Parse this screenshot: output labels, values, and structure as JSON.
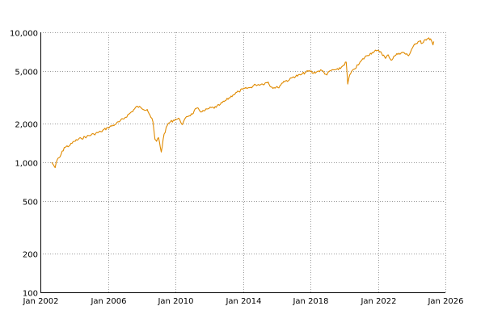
{
  "chart_data": {
    "type": "line",
    "title": "",
    "xlabel": "",
    "ylabel": "",
    "y_scale": "log",
    "ylim": [
      100,
      10000
    ],
    "xlim": [
      "2002-01-01",
      "2026-01-01"
    ],
    "grid": true,
    "y_ticks": [
      {
        "value": 100,
        "label": "100"
      },
      {
        "value": 200,
        "label": "200"
      },
      {
        "value": 500,
        "label": "500"
      },
      {
        "value": 1000,
        "label": "1,000"
      },
      {
        "value": 2000,
        "label": "2,000"
      },
      {
        "value": 5000,
        "label": "5,000"
      },
      {
        "value": 10000,
        "label": "10,000"
      }
    ],
    "x_ticks": [
      {
        "value": "2002-01-01",
        "label": "Jan 2002"
      },
      {
        "value": "2006-01-01",
        "label": "Jan 2006"
      },
      {
        "value": "2010-01-01",
        "label": "Jan 2010"
      },
      {
        "value": "2014-01-01",
        "label": "Jan 2014"
      },
      {
        "value": "2018-01-01",
        "label": "Jan 2018"
      },
      {
        "value": "2022-01-01",
        "label": "Jan 2022"
      },
      {
        "value": "2026-01-01",
        "label": "Jan 2026"
      }
    ],
    "series": [
      {
        "color": "#e08a00",
        "x": [
          "2002-09-01",
          "2002-10-15",
          "2002-11-15",
          "2003-01-01",
          "2003-03-01",
          "2003-06-01",
          "2003-10-01",
          "2004-01-01",
          "2004-06-01",
          "2004-10-01",
          "2005-03-01",
          "2005-08-01",
          "2006-01-01",
          "2006-06-01",
          "2006-09-01",
          "2007-01-01",
          "2007-06-01",
          "2007-10-01",
          "2008-01-01",
          "2008-05-01",
          "2008-07-01",
          "2008-09-01",
          "2008-10-15",
          "2008-11-20",
          "2009-01-01",
          "2009-03-01",
          "2009-05-01",
          "2009-08-01",
          "2010-01-01",
          "2010-04-01",
          "2010-06-01",
          "2010-09-01",
          "2011-01-01",
          "2011-04-01",
          "2011-08-01",
          "2011-10-01",
          "2012-01-01",
          "2012-06-01",
          "2012-09-01",
          "2013-01-01",
          "2013-06-01",
          "2013-10-01",
          "2014-01-01",
          "2014-06-01",
          "2014-10-01",
          "2015-03-01",
          "2015-07-01",
          "2015-09-01",
          "2016-02-01",
          "2016-06-01",
          "2016-10-01",
          "2017-01-01",
          "2017-06-01",
          "2017-10-01",
          "2018-01-15",
          "2018-02-10",
          "2018-06-01",
          "2018-09-01",
          "2018-12-24",
          "2019-03-01",
          "2019-06-01",
          "2019-09-01",
          "2019-12-01",
          "2020-02-15",
          "2020-03-20",
          "2020-05-01",
          "2020-08-01",
          "2020-11-01",
          "2021-01-01",
          "2021-05-01",
          "2021-09-01",
          "2021-12-01",
          "2022-03-01",
          "2022-06-15",
          "2022-08-15",
          "2022-10-15",
          "2023-01-01",
          "2023-04-01",
          "2023-07-01",
          "2023-10-25",
          "2024-01-01",
          "2024-03-01",
          "2024-05-01",
          "2024-07-15",
          "2024-08-05",
          "2024-10-01",
          "2024-12-01",
          "2025-02-15",
          "2025-04-08",
          "2025-04-25"
        ],
        "y": [
          1000,
          950,
          910,
          1050,
          1100,
          1300,
          1350,
          1450,
          1530,
          1580,
          1650,
          1720,
          1850,
          1950,
          2050,
          2200,
          2450,
          2700,
          2600,
          2550,
          2300,
          2050,
          1500,
          1450,
          1550,
          1200,
          1650,
          2000,
          2150,
          2150,
          1950,
          2250,
          2350,
          2600,
          2450,
          2500,
          2600,
          2650,
          2800,
          3000,
          3300,
          3500,
          3650,
          3750,
          3950,
          4000,
          4150,
          3800,
          3750,
          4200,
          4300,
          4550,
          4700,
          4950,
          5050,
          4850,
          5000,
          5100,
          4700,
          5050,
          5150,
          5150,
          5500,
          5900,
          4000,
          4700,
          5200,
          5600,
          6000,
          6600,
          7000,
          7200,
          7100,
          6300,
          6700,
          6100,
          6600,
          6900,
          7000,
          6600,
          7400,
          8100,
          8200,
          8600,
          8200,
          8700,
          8900,
          8900,
          8000,
          8500
        ]
      }
    ]
  }
}
